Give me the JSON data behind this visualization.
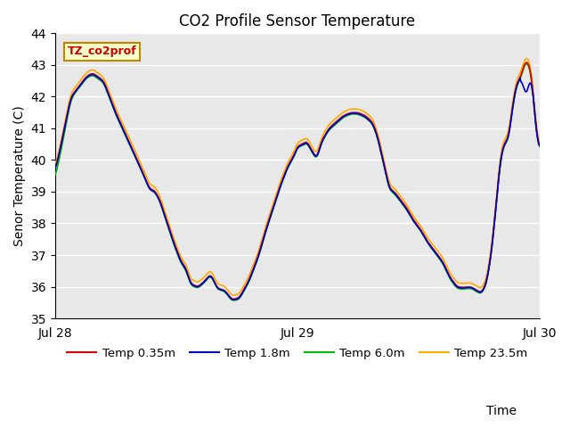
{
  "title": "CO2 Profile Sensor Temperature",
  "ylabel": "Senor Temperature (C)",
  "xlabel": "Time",
  "xlim": [
    0,
    2.0
  ],
  "ylim": [
    35.0,
    44.0
  ],
  "yticks": [
    35.0,
    36.0,
    37.0,
    38.0,
    39.0,
    40.0,
    41.0,
    42.0,
    43.0,
    44.0
  ],
  "xtick_positions": [
    0.0,
    1.0,
    2.0
  ],
  "xtick_labels": [
    "Jul 28",
    "Jul 29",
    "Jul 30"
  ],
  "legend_label": "TZ_co2prof",
  "legend_box_color": "#ffffcc",
  "legend_box_edge": "#bb8800",
  "colors": {
    "Temp 0.35m": "#dd0000",
    "Temp 1.8m": "#0000cc",
    "Temp 6.0m": "#00bb00",
    "Temp 23.5m": "#ffaa00"
  },
  "bg_color": "#e8e8e8",
  "grid_color": "#ffffff",
  "title_fontsize": 12,
  "axis_fontsize": 10,
  "tick_fontsize": 10,
  "linewidth": 1.2
}
